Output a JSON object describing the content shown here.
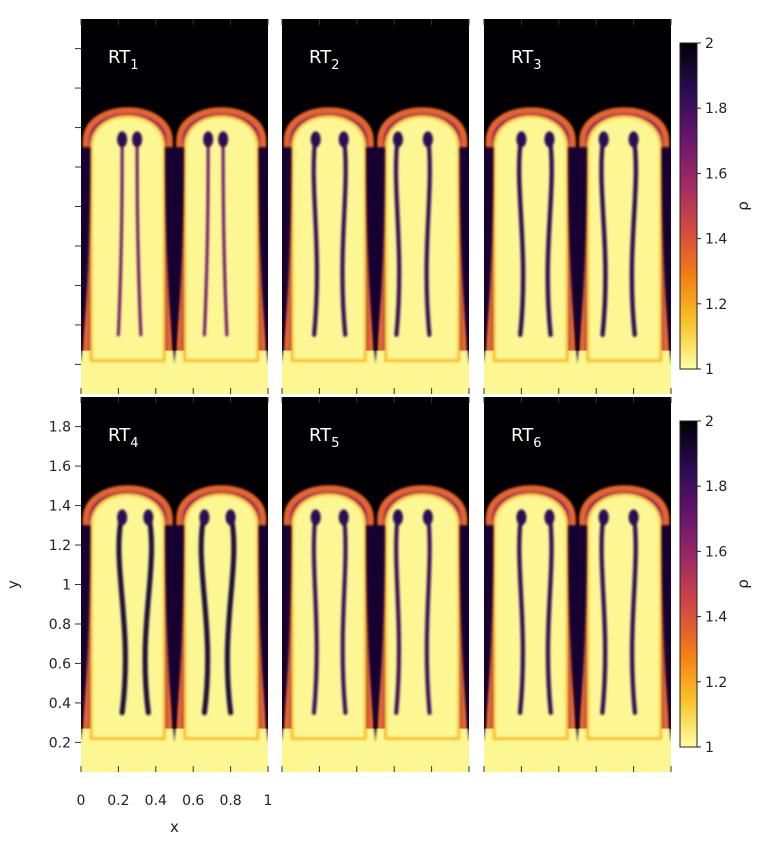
{
  "chart_data": {
    "type": "heatmap",
    "variable": "ρ",
    "colormap": "inferno (reversed)",
    "colormap_stops": [
      "#fcffa4",
      "#fac228",
      "#f57d15",
      "#d44842",
      "#9f2a63",
      "#65156e",
      "#280b53",
      "#000004"
    ],
    "panels": [
      {
        "label": "RT",
        "sub": "1",
        "row": 0,
        "col": 0,
        "spikes": [
          0.22,
          0.3,
          0.68,
          0.76
        ],
        "turbulence": 0.0
      },
      {
        "label": "RT",
        "sub": "2",
        "row": 0,
        "col": 1,
        "spikes": [
          0.18,
          0.33,
          0.62,
          0.78
        ],
        "turbulence": 0.6
      },
      {
        "label": "RT",
        "sub": "3",
        "row": 0,
        "col": 2,
        "spikes": [
          0.2,
          0.35,
          0.64,
          0.8
        ],
        "turbulence": 0.7
      },
      {
        "label": "RT",
        "sub": "4",
        "row": 1,
        "col": 0,
        "spikes": [
          0.22,
          0.36,
          0.66,
          0.8
        ],
        "turbulence": 1.0
      },
      {
        "label": "RT",
        "sub": "5",
        "row": 1,
        "col": 1,
        "spikes": [
          0.18,
          0.33,
          0.62,
          0.78
        ],
        "turbulence": 0.55
      },
      {
        "label": "RT",
        "sub": "6",
        "row": 1,
        "col": 2,
        "spikes": [
          0.2,
          0.35,
          0.64,
          0.8
        ],
        "turbulence": 0.65
      }
    ],
    "xlabel": "x",
    "ylabel": "y",
    "xlim": [
      0,
      1
    ],
    "ylim": [
      0.05,
      1.95
    ],
    "xticks": [
      0,
      0.2,
      0.4,
      0.6,
      0.8,
      1
    ],
    "xtick_labels": [
      "0",
      "0.2",
      "0.4",
      "0.6",
      "0.8",
      "1"
    ],
    "yticks": [
      0.2,
      0.4,
      0.6,
      0.8,
      1,
      1.2,
      1.4,
      1.6,
      1.8
    ],
    "ytick_labels": [
      "0.2",
      "0.4",
      "0.6",
      "0.8",
      "1",
      "1.2",
      "1.4",
      "1.6",
      "1.8"
    ],
    "colorbar": {
      "label": "ρ",
      "range": [
        1,
        2
      ],
      "ticks": [
        1,
        1.2,
        1.4,
        1.6,
        1.8,
        2
      ],
      "tick_labels": [
        "1",
        "1.2",
        "1.4",
        "1.6",
        "1.8",
        "2"
      ]
    },
    "bubble_tip_y": 1.5,
    "bubble_base_y": 0.22
  }
}
